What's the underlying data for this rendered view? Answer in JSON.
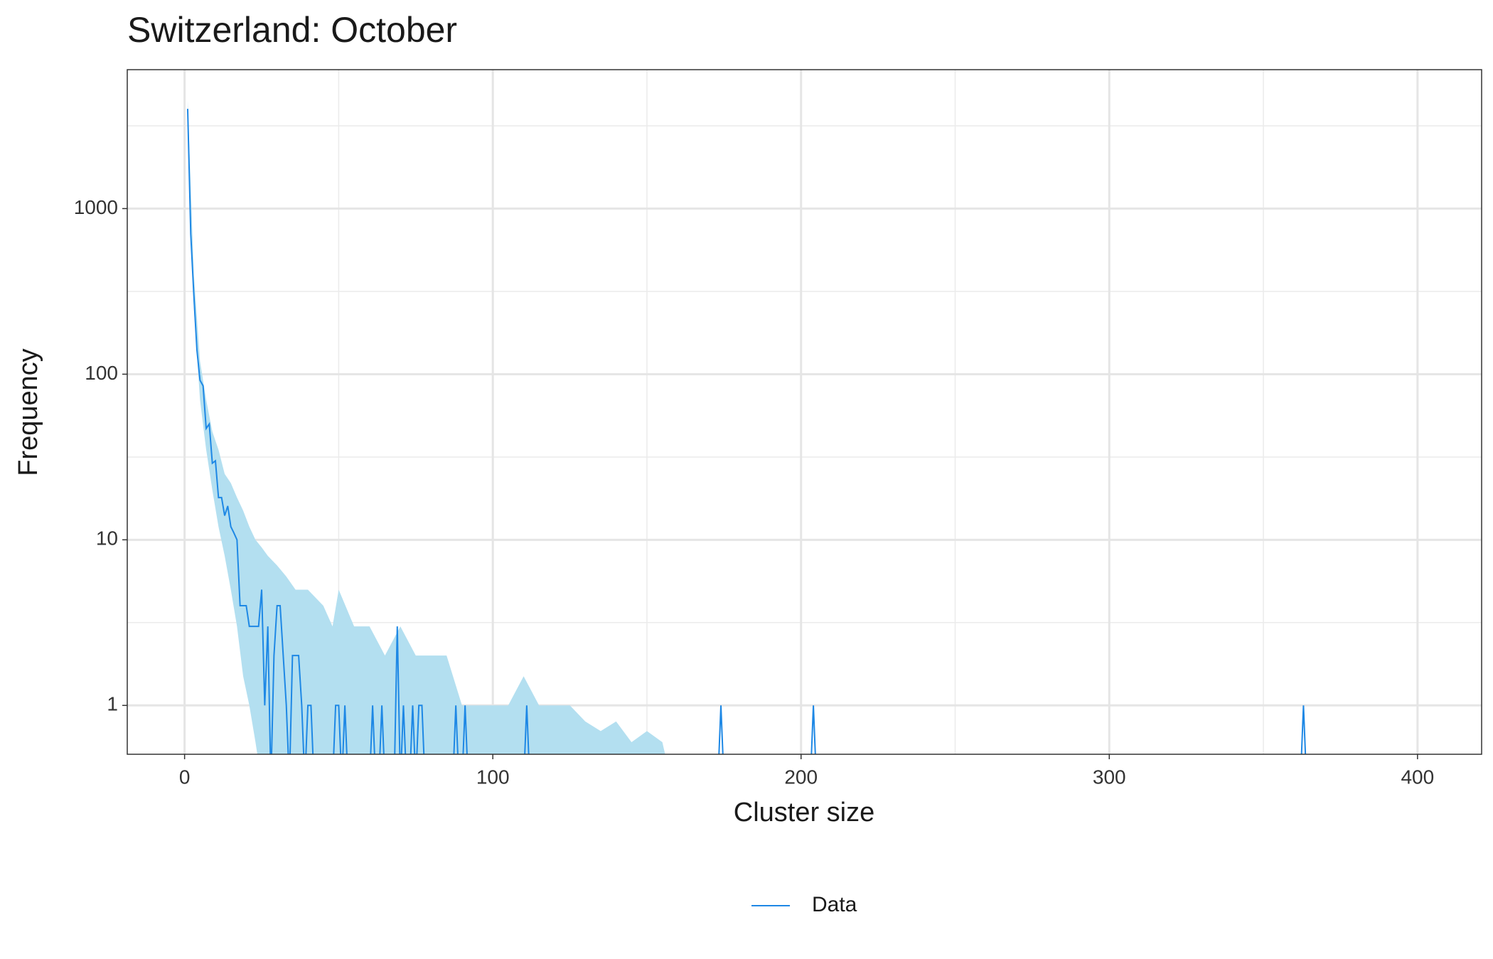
{
  "chart_data": {
    "type": "line",
    "title": "Switzerland: October",
    "x_label": "Cluster size",
    "y_label": "Frequency",
    "xlim": [
      -18.6,
      420.8
    ],
    "xticks": [
      0,
      100,
      200,
      300,
      400
    ],
    "minor_xticks": [
      50,
      150,
      250,
      350
    ],
    "ylim": [
      0.507,
      6900
    ],
    "yticks": [
      1,
      10,
      100,
      1000
    ],
    "minor_yticks": [
      3.162,
      31.62,
      316.2,
      3162
    ],
    "log_y": true,
    "grid": true,
    "legend": "bottom",
    "series": [
      {
        "name": "Data",
        "color": "#1e88e5",
        "x": [
          1,
          2,
          3,
          4,
          5,
          6,
          7,
          8,
          9,
          10,
          11,
          12,
          13,
          14,
          15,
          16,
          17,
          18,
          19,
          20,
          21,
          22,
          23,
          24,
          25,
          26,
          27,
          28,
          29,
          30,
          31,
          32,
          33,
          34,
          35,
          36,
          37,
          38,
          39,
          40,
          41,
          42,
          48,
          49,
          50,
          51,
          52,
          53,
          60,
          61,
          62,
          63,
          64,
          65,
          68,
          69,
          70,
          71,
          72,
          73,
          74,
          75,
          76,
          77,
          78,
          87,
          88,
          89,
          90,
          91,
          92,
          110,
          111,
          112,
          173,
          174,
          175,
          203,
          204,
          205,
          362,
          363,
          364
        ],
        "values": [
          4000,
          700,
          300,
          140,
          92,
          85,
          47,
          50,
          29,
          30,
          18,
          18,
          14,
          16,
          12,
          11,
          10,
          4,
          4,
          4,
          3,
          3,
          3,
          3,
          5,
          1,
          3,
          0,
          2,
          4,
          4,
          2,
          1,
          0,
          2,
          2,
          2,
          1,
          0,
          1,
          1,
          0,
          0,
          1,
          1,
          0,
          1,
          0,
          0,
          1,
          0,
          0,
          1,
          0,
          0,
          3,
          0,
          1,
          0,
          0,
          1,
          0,
          1,
          1,
          0,
          0,
          1,
          0,
          0,
          1,
          0,
          0,
          1,
          0,
          0,
          1,
          0,
          0,
          1,
          0,
          0,
          1,
          0
        ]
      }
    ],
    "band": {
      "color": "#b3dff0",
      "x": [
        1,
        3,
        5,
        7,
        9,
        11,
        13,
        15,
        17,
        19,
        21,
        23,
        25,
        27,
        30,
        33,
        36,
        40,
        45,
        48,
        50,
        55,
        60,
        65,
        70,
        75,
        80,
        85,
        90,
        95,
        100,
        105,
        110,
        115,
        120,
        125,
        130,
        135,
        140,
        145,
        150,
        155,
        158
      ],
      "lower": [
        3500,
        250,
        70,
        35,
        20,
        12,
        8,
        5,
        3,
        1.5,
        1,
        0.6,
        0,
        0,
        0,
        0,
        0,
        0,
        0,
        0,
        0,
        0,
        0,
        0,
        0,
        0,
        0,
        0,
        0,
        0,
        0,
        0,
        0,
        0,
        0,
        0,
        0,
        0,
        0,
        0,
        0,
        0,
        0
      ],
      "upper": [
        4500,
        400,
        120,
        70,
        45,
        35,
        25,
        22,
        18,
        15,
        12,
        10,
        9,
        8,
        7,
        6,
        5,
        5,
        4,
        3,
        5,
        3,
        3,
        2,
        3,
        2,
        2,
        2,
        1,
        1,
        1,
        1,
        1.5,
        1,
        1,
        1,
        0.8,
        0.7,
        0.8,
        0.6,
        0.7,
        0.6,
        0
      ]
    }
  }
}
